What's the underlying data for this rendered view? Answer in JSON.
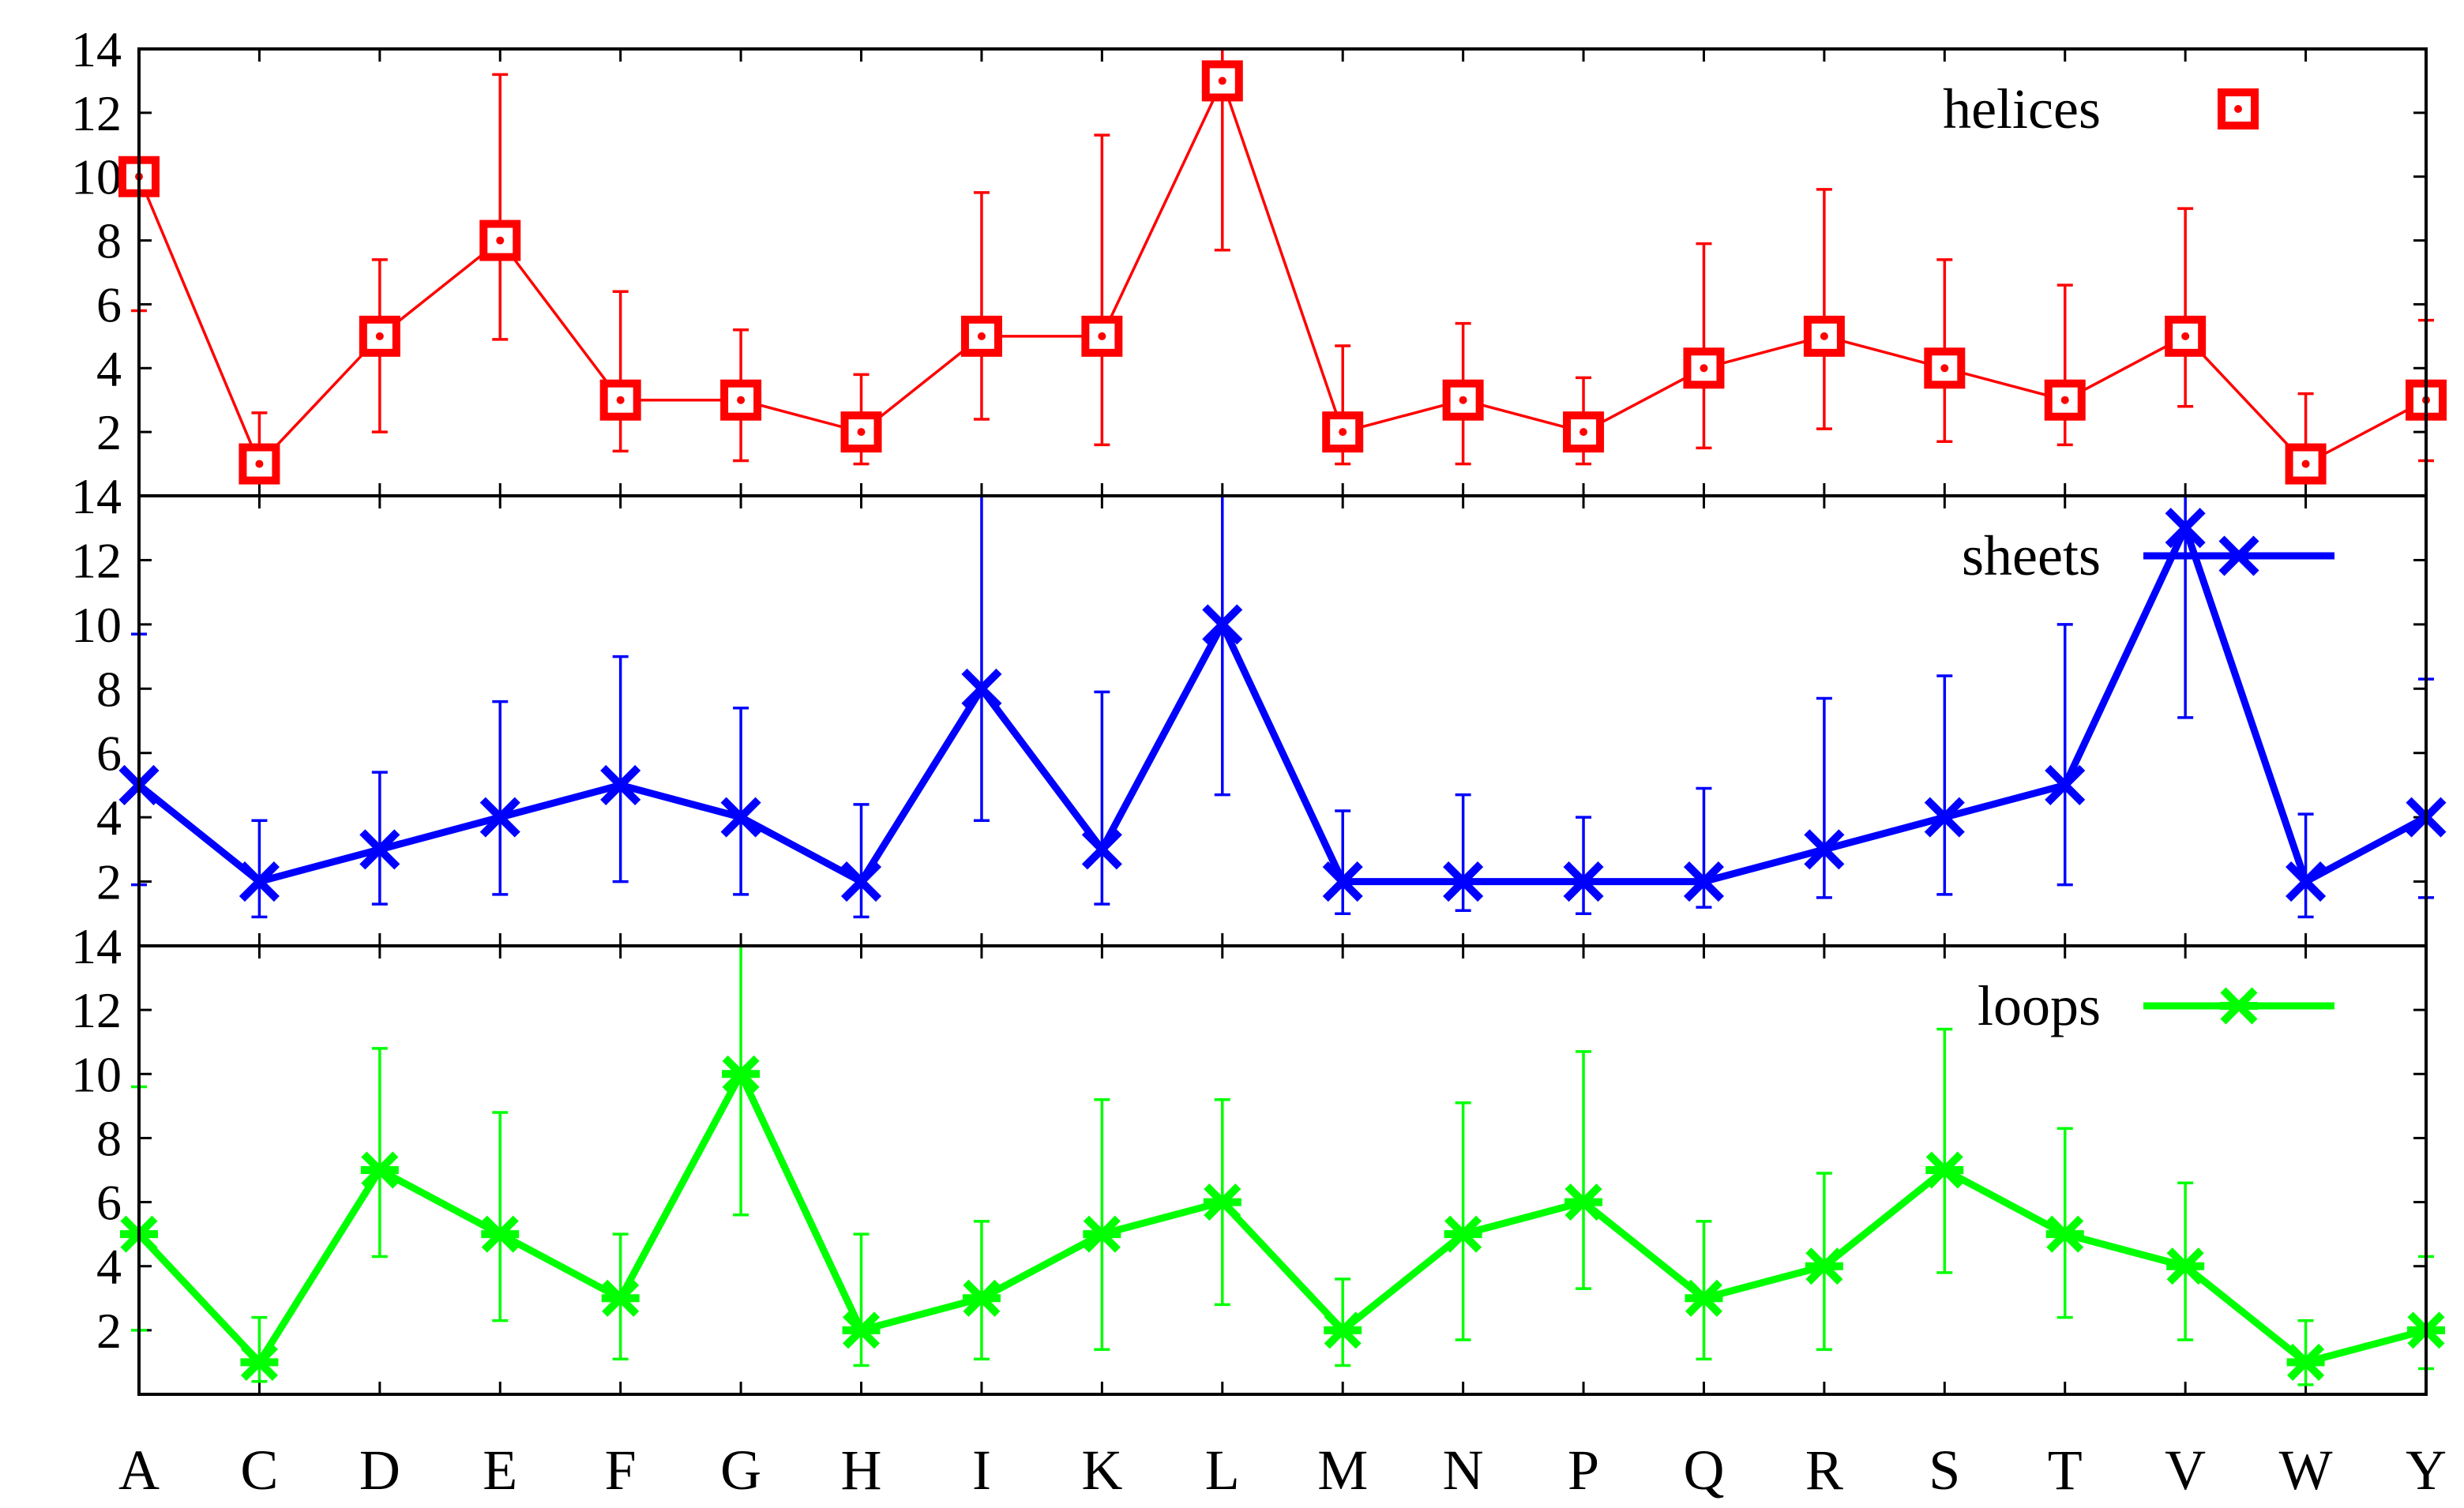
{
  "chart_data": {
    "type": "line",
    "layout": "stacked-panels",
    "categories": [
      "A",
      "C",
      "D",
      "E",
      "F",
      "G",
      "H",
      "I",
      "K",
      "L",
      "M",
      "N",
      "P",
      "Q",
      "R",
      "S",
      "T",
      "V",
      "W",
      "Y"
    ],
    "ylim": [
      0,
      14
    ],
    "yticks": [
      2,
      4,
      6,
      8,
      10,
      12,
      14
    ],
    "panels": [
      {
        "name": "helices",
        "legend": "helices",
        "legend_position": "top-right",
        "color": "#ff0000",
        "marker": "square-dot",
        "values": [
          10,
          1,
          5,
          8,
          3,
          3,
          2,
          5,
          5,
          13,
          2,
          3,
          2,
          4,
          5,
          4,
          3,
          5,
          1,
          3
        ],
        "err_low": [
          5.8,
          0.9,
          2.0,
          4.9,
          1.4,
          1.1,
          1.0,
          2.4,
          1.6,
          7.7,
          1.0,
          1.0,
          1.0,
          1.5,
          2.1,
          1.7,
          1.6,
          2.8,
          0.9,
          1.1
        ],
        "err_high": [
          14.0,
          2.6,
          7.4,
          13.2,
          6.4,
          5.2,
          3.8,
          9.5,
          11.3,
          14.0,
          4.7,
          5.4,
          3.7,
          7.9,
          9.6,
          7.4,
          6.6,
          9.0,
          3.2,
          5.5
        ]
      },
      {
        "name": "sheets",
        "legend": "sheets",
        "legend_position": "top-right",
        "color": "#0000ff",
        "marker": "x",
        "values": [
          5,
          2,
          3,
          4,
          5,
          4,
          2,
          8,
          3,
          10,
          2,
          2,
          2,
          2,
          3,
          4,
          5,
          13,
          2,
          4
        ],
        "err_low": [
          1.9,
          0.9,
          1.3,
          1.6,
          2.0,
          1.6,
          0.9,
          3.9,
          1.3,
          4.7,
          1.0,
          1.1,
          1.0,
          1.2,
          1.5,
          1.6,
          1.9,
          7.1,
          0.9,
          1.5
        ],
        "err_high": [
          9.7,
          3.9,
          5.4,
          7.6,
          9.0,
          7.4,
          4.4,
          14.0,
          7.9,
          14.0,
          4.2,
          4.7,
          4.0,
          4.9,
          7.7,
          8.4,
          10.0,
          14.0,
          4.1,
          8.3
        ]
      },
      {
        "name": "loops",
        "legend": "loops",
        "legend_position": "top-right",
        "color": "#00ff00",
        "marker": "star",
        "values": [
          5,
          1,
          7,
          5,
          3,
          10,
          2,
          3,
          5,
          6,
          2,
          5,
          6,
          3,
          4,
          7,
          5,
          4,
          1,
          2
        ],
        "err_low": [
          2.0,
          0.4,
          4.3,
          2.3,
          1.1,
          5.6,
          0.9,
          1.1,
          1.4,
          2.8,
          0.9,
          1.7,
          3.3,
          1.1,
          1.4,
          3.8,
          2.4,
          1.7,
          0.3,
          0.8
        ],
        "err_high": [
          9.6,
          2.4,
          10.8,
          8.8,
          5.0,
          14.0,
          5.0,
          5.4,
          9.2,
          9.2,
          3.6,
          9.1,
          10.7,
          5.4,
          6.9,
          11.4,
          8.3,
          6.6,
          2.3,
          4.3
        ]
      }
    ]
  }
}
